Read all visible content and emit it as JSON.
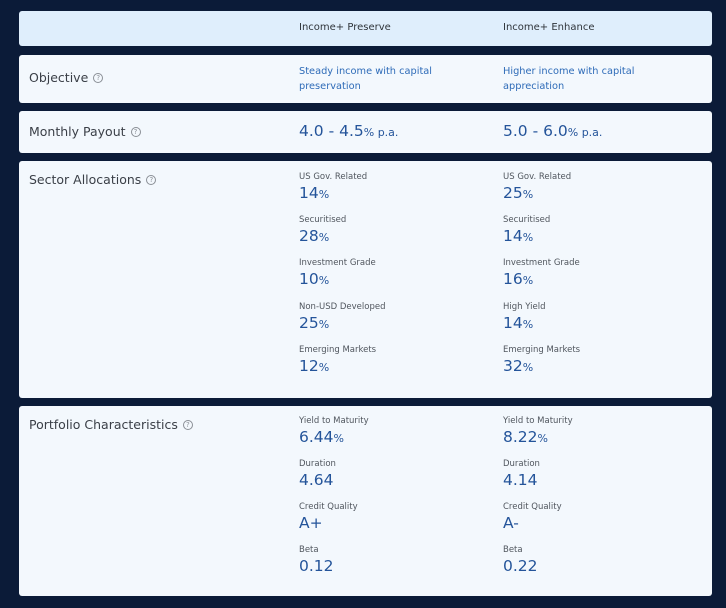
{
  "columns": [
    "Income+ Preserve",
    "Income+ Enhance"
  ],
  "help_glyph": "?",
  "objective": {
    "label": "Objective",
    "values": [
      "Steady income with capital preservation",
      "Higher income with capital appreciation"
    ]
  },
  "monthly_payout": {
    "label": "Monthly Payout",
    "values": [
      {
        "range": "4.0 - 4.5",
        "unit": "% p.a."
      },
      {
        "range": "5.0 - 6.0",
        "unit": "% p.a."
      }
    ]
  },
  "sector_allocations": {
    "label": "Sector Allocations",
    "columns": [
      [
        {
          "name": "US Gov. Related",
          "value": "14",
          "unit": "%"
        },
        {
          "name": "Securitised",
          "value": "28",
          "unit": "%"
        },
        {
          "name": "Investment Grade",
          "value": "10",
          "unit": "%"
        },
        {
          "name": "Non-USD Developed",
          "value": "25",
          "unit": "%"
        },
        {
          "name": "Emerging Markets",
          "value": "12",
          "unit": "%"
        }
      ],
      [
        {
          "name": "US Gov. Related",
          "value": "25",
          "unit": "%"
        },
        {
          "name": "Securitised",
          "value": "14",
          "unit": "%"
        },
        {
          "name": "Investment Grade",
          "value": "16",
          "unit": "%"
        },
        {
          "name": "High Yield",
          "value": "14",
          "unit": "%"
        },
        {
          "name": "Emerging Markets",
          "value": "32",
          "unit": "%"
        }
      ]
    ]
  },
  "portfolio_characteristics": {
    "label": "Portfolio Characteristics",
    "columns": [
      [
        {
          "name": "Yield to Maturity",
          "value": "6.44",
          "unit": "%"
        },
        {
          "name": "Duration",
          "value": "4.64",
          "unit": ""
        },
        {
          "name": "Credit Quality",
          "value": "A+",
          "unit": ""
        },
        {
          "name": "Beta",
          "value": "0.12",
          "unit": ""
        }
      ],
      [
        {
          "name": "Yield to Maturity",
          "value": "8.22",
          "unit": "%"
        },
        {
          "name": "Duration",
          "value": "4.14",
          "unit": ""
        },
        {
          "name": "Credit Quality",
          "value": "A-",
          "unit": ""
        },
        {
          "name": "Beta",
          "value": "0.22",
          "unit": ""
        }
      ]
    ]
  }
}
